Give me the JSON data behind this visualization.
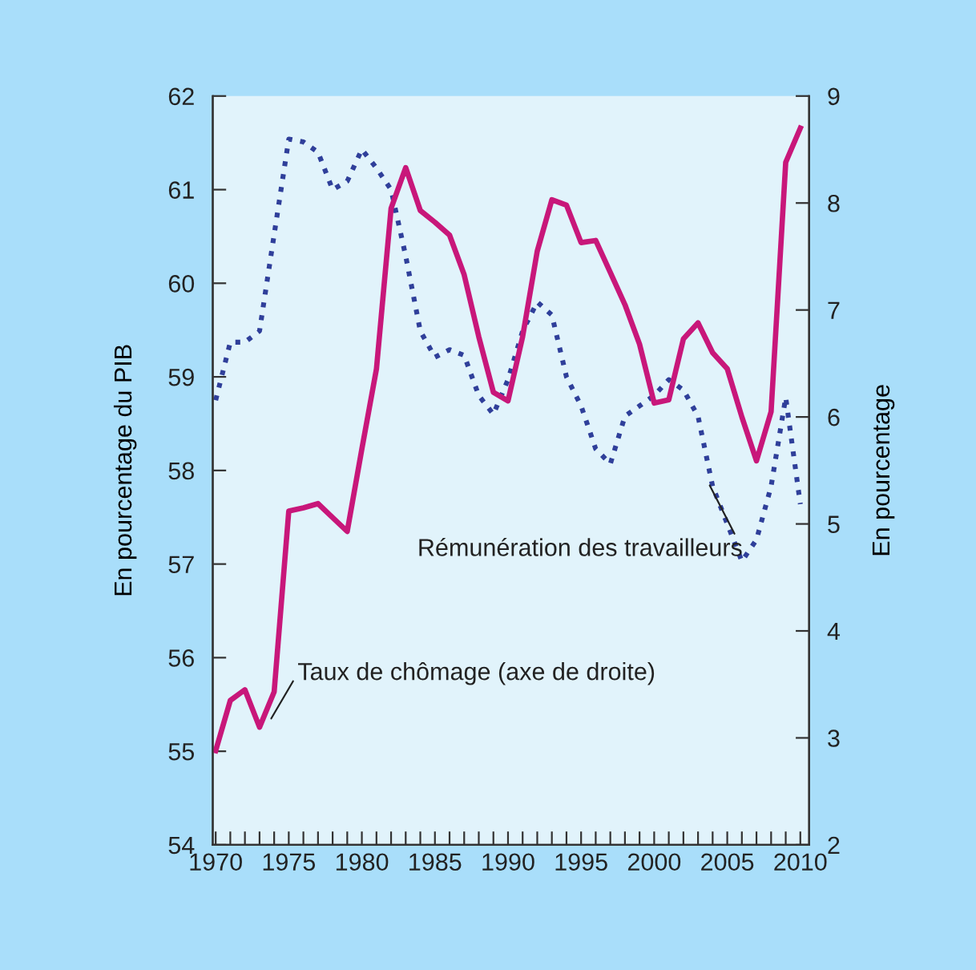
{
  "chart_data": {
    "type": "line",
    "x": [
      1970,
      1971,
      1972,
      1973,
      1974,
      1975,
      1976,
      1977,
      1978,
      1979,
      1980,
      1981,
      1982,
      1983,
      1984,
      1985,
      1986,
      1987,
      1988,
      1989,
      1990,
      1991,
      1992,
      1993,
      1994,
      1995,
      1996,
      1997,
      1998,
      1999,
      2000,
      2001,
      2002,
      2003,
      2004,
      2005,
      2006,
      2007,
      2008,
      2009,
      2010
    ],
    "series": [
      {
        "color": "#2f3f9a",
        "line_style": "dotted",
        "values": [
          58.75,
          59.37,
          59.37,
          59.49,
          60.52,
          61.54,
          61.51,
          61.4,
          61.0,
          61.09,
          61.43,
          61.23,
          61.0,
          60.29,
          59.49,
          59.21,
          59.29,
          59.23,
          58.8,
          58.6,
          58.97,
          59.49,
          59.8,
          59.66,
          59.0,
          58.69,
          58.23,
          58.07,
          58.58,
          58.69,
          58.8,
          58.97,
          58.86,
          58.58,
          57.83,
          57.43,
          57.03,
          57.26,
          57.83,
          58.78,
          57.64
        ]
      },
      {
        "color": "#c8177a",
        "line_style": "solid",
        "axis": "y2",
        "values": [
          2.88,
          3.35,
          3.45,
          3.1,
          3.43,
          5.12,
          5.15,
          5.19,
          5.06,
          4.93,
          5.7,
          6.45,
          7.95,
          8.33,
          7.93,
          7.82,
          7.7,
          7.33,
          6.75,
          6.23,
          6.15,
          6.75,
          7.55,
          8.03,
          7.98,
          7.63,
          7.65,
          7.35,
          7.05,
          6.68,
          6.13,
          6.16,
          6.73,
          6.88,
          6.6,
          6.45,
          6.0,
          5.59,
          6.05,
          8.38,
          8.7
        ]
      }
    ],
    "ylabel": "En pourcentage du PIB",
    "y2label": "En pourcentage",
    "xlim": [
      1969.8,
      2010.6
    ],
    "xticks": [
      {
        "value": 1970,
        "label": "1970"
      },
      {
        "value": 1971,
        "label": null
      },
      {
        "value": 1972,
        "label": null
      },
      {
        "value": 1973,
        "label": null
      },
      {
        "value": 1974,
        "label": null
      },
      {
        "value": 1975,
        "label": "1975"
      },
      {
        "value": 1976,
        "label": null
      },
      {
        "value": 1977,
        "label": null
      },
      {
        "value": 1978,
        "label": null
      },
      {
        "value": 1979,
        "label": null
      },
      {
        "value": 1980,
        "label": "1980"
      },
      {
        "value": 1981,
        "label": null
      },
      {
        "value": 1982,
        "label": null
      },
      {
        "value": 1983,
        "label": null
      },
      {
        "value": 1984,
        "label": null
      },
      {
        "value": 1985,
        "label": "1985"
      },
      {
        "value": 1986,
        "label": null
      },
      {
        "value": 1987,
        "label": null
      },
      {
        "value": 1988,
        "label": null
      },
      {
        "value": 1989,
        "label": null
      },
      {
        "value": 1990,
        "label": "1990"
      },
      {
        "value": 1991,
        "label": null
      },
      {
        "value": 1992,
        "label": null
      },
      {
        "value": 1993,
        "label": null
      },
      {
        "value": 1994,
        "label": null
      },
      {
        "value": 1995,
        "label": "1995"
      },
      {
        "value": 1996,
        "label": null
      },
      {
        "value": 1997,
        "label": null
      },
      {
        "value": 1998,
        "label": null
      },
      {
        "value": 1999,
        "label": null
      },
      {
        "value": 2000,
        "label": "2000"
      },
      {
        "value": 2001,
        "label": null
      },
      {
        "value": 2002,
        "label": null
      },
      {
        "value": 2003,
        "label": null
      },
      {
        "value": 2004,
        "label": null
      },
      {
        "value": 2005,
        "label": "2005"
      },
      {
        "value": 2006,
        "label": null
      },
      {
        "value": 2007,
        "label": null
      },
      {
        "value": 2008,
        "label": null
      },
      {
        "value": 2009,
        "label": null
      },
      {
        "value": 2010,
        "label": "2010"
      }
    ],
    "ylim": [
      54,
      62
    ],
    "yticks": [
      54,
      55,
      56,
      57,
      58,
      59,
      60,
      61,
      62
    ],
    "y2lim": [
      2,
      9
    ],
    "y2ticks": [
      2,
      3,
      4,
      5,
      6,
      7,
      8,
      9
    ],
    "grid": false,
    "legend": false,
    "marker": "none",
    "annotations": [
      {
        "text": "Rémunération des travailleurs",
        "x": 2003.8,
        "y": 57.84
      },
      {
        "text": "Taux de chômage (axe de droite)",
        "x": 1973.8,
        "y": 55.35
      }
    ]
  }
}
